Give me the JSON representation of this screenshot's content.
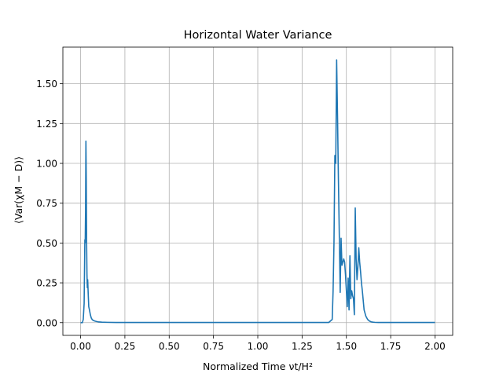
{
  "chart_data": {
    "type": "line",
    "title": "Horizontal Water Variance",
    "xlabel": "Normalized Time νt/H²",
    "ylabel": "⟨Var(χM − D)⟩",
    "xlim": [
      -0.1,
      2.1
    ],
    "ylim": [
      -0.08,
      1.73
    ],
    "xticks": [
      0.0,
      0.25,
      0.5,
      0.75,
      1.0,
      1.25,
      1.5,
      1.75,
      2.0
    ],
    "xtick_labels": [
      "0.00",
      "0.25",
      "0.50",
      "0.75",
      "1.00",
      "1.25",
      "1.50",
      "1.75",
      "2.00"
    ],
    "yticks": [
      0.0,
      0.25,
      0.5,
      0.75,
      1.0,
      1.25,
      1.5
    ],
    "ytick_labels": [
      "0.00",
      "0.25",
      "0.50",
      "0.75",
      "1.00",
      "1.25",
      "1.50"
    ],
    "grid": true,
    "color": "#1f77b4",
    "series": [
      {
        "x": [
          0.0,
          0.01,
          0.015,
          0.02,
          0.024,
          0.026,
          0.028,
          0.03,
          0.032,
          0.034,
          0.036,
          0.038,
          0.04,
          0.043,
          0.046,
          0.05,
          0.055,
          0.06,
          0.065,
          0.07,
          0.08,
          0.09,
          0.1,
          0.12,
          0.15,
          0.2,
          0.3,
          0.5,
          0.75,
          1.0,
          1.25,
          1.4,
          1.42,
          1.425,
          1.43,
          1.435,
          1.44,
          1.445,
          1.45,
          1.455,
          1.46,
          1.465,
          1.47,
          1.475,
          1.48,
          1.485,
          1.49,
          1.495,
          1.5,
          1.505,
          1.51,
          1.515,
          1.52,
          1.525,
          1.53,
          1.535,
          1.54,
          1.545,
          1.55,
          1.555,
          1.56,
          1.565,
          1.57,
          1.575,
          1.58,
          1.585,
          1.59,
          1.6,
          1.61,
          1.62,
          1.63,
          1.64,
          1.65,
          1.66,
          1.68,
          1.7,
          1.75,
          2.0
        ],
        "y": [
          0.0,
          0.0,
          0.02,
          0.12,
          0.52,
          0.5,
          0.7,
          1.14,
          0.9,
          0.5,
          0.3,
          0.22,
          0.27,
          0.18,
          0.1,
          0.08,
          0.05,
          0.03,
          0.02,
          0.015,
          0.01,
          0.007,
          0.005,
          0.003,
          0.002,
          0.001,
          0.001,
          0.001,
          0.001,
          0.001,
          0.001,
          0.001,
          0.02,
          0.2,
          0.5,
          1.05,
          1.0,
          1.65,
          1.3,
          0.9,
          0.55,
          0.19,
          0.53,
          0.36,
          0.38,
          0.4,
          0.38,
          0.3,
          0.2,
          0.1,
          0.28,
          0.08,
          0.42,
          0.15,
          0.2,
          0.17,
          0.15,
          0.05,
          0.72,
          0.4,
          0.27,
          0.35,
          0.47,
          0.38,
          0.32,
          0.25,
          0.2,
          0.08,
          0.04,
          0.02,
          0.01,
          0.005,
          0.003,
          0.002,
          0.001,
          0.001,
          0.001,
          0.001
        ]
      }
    ]
  }
}
